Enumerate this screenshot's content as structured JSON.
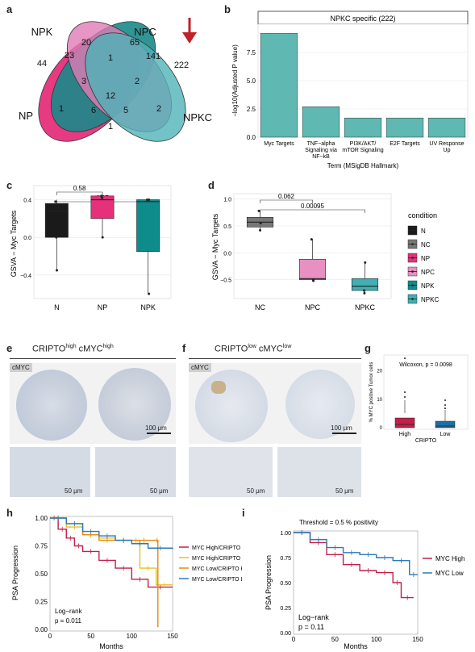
{
  "panels": {
    "a": "a",
    "b": "b",
    "c": "c",
    "d": "d",
    "e": "e",
    "f": "f",
    "g": "g",
    "h": "h",
    "i": "i"
  },
  "venn": {
    "sets": [
      "NPK",
      "NPC",
      "NP",
      "NPKC"
    ],
    "colors": {
      "NPK": "#1a8a8a",
      "NPC": "#e07bb5",
      "NP": "#e6307a",
      "NPKC": "#4fb3b8"
    },
    "region_counts": [
      "20",
      "65",
      "44",
      "23",
      "1",
      "141",
      "222",
      "3",
      "2",
      "12",
      "1",
      "6",
      "5",
      "2",
      "1"
    ],
    "arrow_color": "#c0202a"
  },
  "panel_b": {
    "strip_title": "NPKC specific (222)",
    "ylabel": "−log10(Adjusted P value)",
    "xlabel": "Term (MSigDB Hallmark)",
    "yticks": [
      "0.0",
      "2.5",
      "5.0",
      "7.5"
    ],
    "chart_data": {
      "type": "bar",
      "categories": [
        "Myc Targets",
        "TNF−alpha Signaling via NF−kB",
        "PI3K/AKT/ mTOR Signaling",
        "E2F Targets",
        "UV Response Up"
      ],
      "values": [
        9.2,
        2.7,
        1.7,
        1.7,
        1.7
      ],
      "ylim": [
        0,
        10
      ]
    },
    "labels": [
      [
        "Myc Targets"
      ],
      [
        "TNF−alpha",
        "Signaling via",
        "NF−kB"
      ],
      [
        "PI3K/AKT/",
        "mTOR Signaling"
      ],
      [
        "E2F Targets"
      ],
      [
        "UV Response",
        "Up"
      ]
    ],
    "bar_color": "#5fb8b2"
  },
  "panel_c": {
    "ylabel": "GSVA − Myc Targets",
    "yticks": [
      "−0.4",
      "0.0",
      "0.4"
    ],
    "categories": [
      "N",
      "NP",
      "NPK"
    ],
    "pvals": [
      "0.58",
      "0.87"
    ],
    "colors": [
      "#1a1a1a",
      "#e6307a",
      "#0e8b8b"
    ],
    "chart_data": {
      "type": "box",
      "categories": [
        "N",
        "NP",
        "NPK"
      ],
      "boxes": [
        {
          "min": -0.35,
          "q1": 0.0,
          "median": 0.28,
          "q3": 0.36,
          "max": 0.4
        },
        {
          "min": 0.0,
          "q1": 0.2,
          "median": 0.4,
          "q3": 0.44,
          "max": 0.46
        },
        {
          "min": -0.6,
          "q1": -0.15,
          "median": 0.38,
          "q3": 0.4,
          "max": 0.4
        }
      ],
      "points": [
        [
          0.38,
          0.0,
          -0.35
        ],
        [
          0.44,
          0.42,
          0.0
        ],
        [
          0.4,
          0.4,
          -0.6
        ]
      ],
      "ylim": [
        -0.65,
        0.55
      ]
    }
  },
  "panel_d": {
    "ylabel": "GSVA − Myc Targets",
    "yticks": [
      "−0.5",
      "0.0",
      "0.5",
      "1.0"
    ],
    "categories": [
      "NC",
      "NPC",
      "NPKC"
    ],
    "pvals": [
      "0.062",
      "0.00095"
    ],
    "colors": [
      "#777777",
      "#e890c2",
      "#3fb0b5"
    ],
    "chart_data": {
      "type": "box",
      "categories": [
        "NC",
        "NPC",
        "NPKC"
      ],
      "boxes": [
        {
          "min": 0.42,
          "q1": 0.48,
          "median": 0.57,
          "q3": 0.66,
          "max": 0.78
        },
        {
          "min": -0.52,
          "q1": -0.5,
          "median": -0.48,
          "q3": -0.12,
          "max": 0.25
        },
        {
          "min": -0.75,
          "q1": -0.7,
          "median": -0.62,
          "q3": -0.48,
          "max": -0.18
        }
      ],
      "points": [
        [
          0.78,
          0.55,
          0.42
        ],
        [
          0.25,
          -0.5,
          -0.52
        ],
        [
          -0.18,
          -0.7,
          -0.75
        ]
      ],
      "ylim": [
        -0.85,
        1.1
      ]
    },
    "legend_title": "condition",
    "legend_items": [
      "N",
      "NC",
      "NP",
      "NPC",
      "NPK",
      "NPKC"
    ],
    "legend_colors": [
      "#1a1a1a",
      "#777777",
      "#e6307a",
      "#e890c2",
      "#0e8b8b",
      "#3fb0b5"
    ]
  },
  "panel_e": {
    "title_main": "CRIPTO",
    "title_sup1": "high",
    "title_mid": " cMYC",
    "title_sup2": "high",
    "tag": "cMYC",
    "scale_big": "100 μm",
    "scale_small": "50 μm"
  },
  "panel_f": {
    "title_main": "CRIPTO",
    "title_sup1": "low",
    "title_mid": " cMYC",
    "title_sup2": "low",
    "tag": "cMYC",
    "scale_big": "100 μm",
    "scale_small": "50 μm"
  },
  "panel_g": {
    "ylabel": "% MYC positive Tumor cells",
    "stat": "Wilcoxon, p = 0.0098",
    "xlabel": "CRIPTO",
    "categories": [
      "High",
      "Low"
    ],
    "yticks": [
      "0",
      "10",
      "20"
    ],
    "colors": [
      "#c0204a",
      "#1a6fa8"
    ]
  },
  "panel_h": {
    "ylabel": "PSA Progression",
    "xlabel": "Months",
    "yticks": [
      "0.00",
      "0.25",
      "0.50",
      "0.75",
      "1.00"
    ],
    "xticks": [
      "0",
      "50",
      "100",
      "150"
    ],
    "logrank": "Log−rank",
    "pvalue": "p = 0.011",
    "legend": [
      "MYC High/CRIPTO High",
      "MYC High/CRIPTO Low",
      "MYC Low/CRIPTO High",
      "MYC Low/CRIPTO Low"
    ],
    "colors": [
      "#c0204a",
      "#e8c020",
      "#e88a10",
      "#2a7ab8"
    ],
    "chart_data": {
      "type": "line",
      "xlim": [
        0,
        150
      ],
      "ylim": [
        0,
        1
      ],
      "series": [
        {
          "name": "MYC High/CRIPTO High",
          "x": [
            0,
            10,
            20,
            30,
            40,
            60,
            80,
            100,
            120,
            150
          ],
          "y": [
            1,
            0.9,
            0.82,
            0.75,
            0.7,
            0.62,
            0.55,
            0.45,
            0.38,
            0.38
          ]
        },
        {
          "name": "MYC High/CRIPTO Low",
          "x": [
            0,
            20,
            40,
            60,
            80,
            100,
            110,
            130,
            150
          ],
          "y": [
            1,
            0.92,
            0.85,
            0.82,
            0.8,
            0.8,
            0.55,
            0.4,
            0.4
          ]
        },
        {
          "name": "MYC Low/CRIPTO High",
          "x": [
            0,
            20,
            40,
            60,
            80,
            100,
            130,
            132
          ],
          "y": [
            1,
            0.95,
            0.85,
            0.8,
            0.8,
            0.8,
            0.8,
            0.02
          ]
        },
        {
          "name": "MYC Low/CRIPTO Low",
          "x": [
            0,
            20,
            40,
            60,
            80,
            100,
            120,
            150
          ],
          "y": [
            1,
            0.95,
            0.88,
            0.84,
            0.8,
            0.77,
            0.73,
            0.72
          ]
        }
      ]
    }
  },
  "panel_i": {
    "title": "Threshold =  0.5 % positivity",
    "ylabel": "PSA Progression",
    "xlabel": "Months",
    "yticks": [
      "0.00",
      "0.25",
      "0.50",
      "0.75",
      "1.00"
    ],
    "xticks": [
      "0",
      "50",
      "100",
      "150"
    ],
    "logrank": "Log−rank",
    "pvalue": "p = 0.11",
    "legend": [
      "MYC High",
      "MYC Low"
    ],
    "colors": [
      "#c0204a",
      "#2a7ab8"
    ],
    "chart_data": {
      "type": "line",
      "xlim": [
        0,
        150
      ],
      "ylim": [
        0,
        1
      ],
      "series": [
        {
          "name": "MYC High",
          "x": [
            0,
            20,
            40,
            60,
            80,
            100,
            120,
            130,
            145
          ],
          "y": [
            1,
            0.9,
            0.78,
            0.68,
            0.62,
            0.6,
            0.5,
            0.35,
            0.35
          ]
        },
        {
          "name": "MYC Low",
          "x": [
            0,
            20,
            40,
            60,
            80,
            100,
            120,
            140,
            150
          ],
          "y": [
            1,
            0.93,
            0.85,
            0.8,
            0.78,
            0.75,
            0.72,
            0.58,
            0.58
          ]
        }
      ]
    }
  }
}
